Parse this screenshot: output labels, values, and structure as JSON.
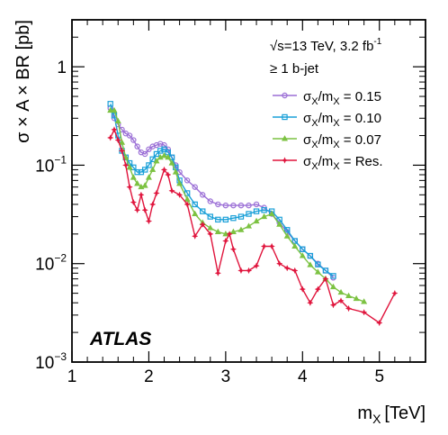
{
  "chart_data": {
    "type": "line",
    "xlabel_main": "m",
    "xlabel_sub": "X",
    "xlabel_unit": "[TeV]",
    "ylabel": "σ × A × BR [pb]",
    "xlim": [
      1,
      5.6
    ],
    "ylim": [
      0.001,
      3
    ],
    "yscale": "log",
    "xticks": [
      1,
      2,
      3,
      4,
      5
    ],
    "yticks": [
      {
        "value": 0.001,
        "base": "10",
        "exp": "−3"
      },
      {
        "value": 0.01,
        "base": "10",
        "exp": "−2"
      },
      {
        "value": 0.1,
        "base": "10",
        "exp": "−1"
      },
      {
        "value": 1,
        "base": "1",
        "exp": ""
      }
    ],
    "grid": false,
    "legend_position": "top-right",
    "annotations": {
      "energy_sqrt": "√s",
      "energy_rest": "=13 TeV, 3.2 fb",
      "energy_sup": "-1",
      "selection": "≥ 1 b-jet",
      "experiment": "ATLAS"
    },
    "series": [
      {
        "label_main": "σ",
        "label_sub": "X",
        "label_sep": "/m",
        "label_sub2": "X",
        "label_value": " = 0.15",
        "color": "#9b6fd6",
        "marker": "circle",
        "points": [
          [
            1.5,
            0.38
          ],
          [
            1.55,
            0.3
          ],
          [
            1.6,
            0.26
          ],
          [
            1.65,
            0.23
          ],
          [
            1.7,
            0.21
          ],
          [
            1.75,
            0.2
          ],
          [
            1.8,
            0.18
          ],
          [
            1.85,
            0.155
          ],
          [
            1.9,
            0.135
          ],
          [
            1.95,
            0.13
          ],
          [
            2.0,
            0.145
          ],
          [
            2.05,
            0.155
          ],
          [
            2.1,
            0.16
          ],
          [
            2.15,
            0.165
          ],
          [
            2.2,
            0.16
          ],
          [
            2.25,
            0.145
          ],
          [
            2.3,
            0.12
          ],
          [
            2.35,
            0.1
          ],
          [
            2.4,
            0.085
          ],
          [
            2.5,
            0.07
          ],
          [
            2.6,
            0.06
          ],
          [
            2.7,
            0.05
          ],
          [
            2.8,
            0.043
          ],
          [
            2.9,
            0.04
          ],
          [
            3.0,
            0.039
          ],
          [
            3.1,
            0.039
          ],
          [
            3.2,
            0.039
          ],
          [
            3.3,
            0.039
          ],
          [
            3.4,
            0.04
          ],
          [
            3.5,
            0.037
          ],
          [
            3.6,
            0.032
          ],
          [
            3.7,
            0.026
          ],
          [
            3.8,
            0.021
          ],
          [
            3.9,
            0.017
          ],
          [
            4.0,
            0.014
          ],
          [
            4.1,
            0.012
          ],
          [
            4.2,
            0.01
          ],
          [
            4.3,
            0.0085
          ],
          [
            4.4,
            0.0072
          ]
        ]
      },
      {
        "label_main": "σ",
        "label_sub": "X",
        "label_sep": "/m",
        "label_sub2": "X",
        "label_value": " = 0.10",
        "color": "#1aa0d8",
        "marker": "square",
        "points": [
          [
            1.5,
            0.42
          ],
          [
            1.55,
            0.32
          ],
          [
            1.6,
            0.2
          ],
          [
            1.65,
            0.14
          ],
          [
            1.7,
            0.12
          ],
          [
            1.75,
            0.105
          ],
          [
            1.8,
            0.095
          ],
          [
            1.85,
            0.085
          ],
          [
            1.9,
            0.085
          ],
          [
            1.95,
            0.09
          ],
          [
            2.0,
            0.1
          ],
          [
            2.05,
            0.115
          ],
          [
            2.1,
            0.13
          ],
          [
            2.15,
            0.14
          ],
          [
            2.2,
            0.145
          ],
          [
            2.25,
            0.135
          ],
          [
            2.3,
            0.12
          ],
          [
            2.35,
            0.095
          ],
          [
            2.4,
            0.07
          ],
          [
            2.5,
            0.052
          ],
          [
            2.6,
            0.04
          ],
          [
            2.7,
            0.034
          ],
          [
            2.8,
            0.03
          ],
          [
            2.9,
            0.028
          ],
          [
            3.0,
            0.028
          ],
          [
            3.1,
            0.029
          ],
          [
            3.2,
            0.03
          ],
          [
            3.3,
            0.032
          ],
          [
            3.4,
            0.034
          ],
          [
            3.5,
            0.035
          ],
          [
            3.6,
            0.034
          ],
          [
            3.7,
            0.028
          ],
          [
            3.8,
            0.022
          ],
          [
            3.9,
            0.017
          ],
          [
            4.0,
            0.014
          ],
          [
            4.1,
            0.012
          ],
          [
            4.2,
            0.0098
          ],
          [
            4.3,
            0.0085
          ],
          [
            4.4,
            0.0075
          ]
        ]
      },
      {
        "label_main": "σ",
        "label_sub": "X",
        "label_sep": "/m",
        "label_sub2": "X",
        "label_value": " = 0.07",
        "color": "#7cc242",
        "marker": "triangle",
        "points": [
          [
            1.5,
            0.36
          ],
          [
            1.55,
            0.36
          ],
          [
            1.6,
            0.28
          ],
          [
            1.65,
            0.17
          ],
          [
            1.7,
            0.12
          ],
          [
            1.75,
            0.095
          ],
          [
            1.8,
            0.075
          ],
          [
            1.85,
            0.065
          ],
          [
            1.9,
            0.06
          ],
          [
            1.95,
            0.062
          ],
          [
            2.0,
            0.075
          ],
          [
            2.05,
            0.09
          ],
          [
            2.1,
            0.11
          ],
          [
            2.15,
            0.12
          ],
          [
            2.2,
            0.125
          ],
          [
            2.25,
            0.12
          ],
          [
            2.3,
            0.105
          ],
          [
            2.35,
            0.085
          ],
          [
            2.4,
            0.065
          ],
          [
            2.5,
            0.045
          ],
          [
            2.6,
            0.032
          ],
          [
            2.7,
            0.026
          ],
          [
            2.8,
            0.023
          ],
          [
            2.9,
            0.021
          ],
          [
            3.0,
            0.02
          ],
          [
            3.1,
            0.021
          ],
          [
            3.2,
            0.022
          ],
          [
            3.3,
            0.024
          ],
          [
            3.4,
            0.027
          ],
          [
            3.5,
            0.03
          ],
          [
            3.6,
            0.032
          ],
          [
            3.7,
            0.025
          ],
          [
            3.8,
            0.019
          ],
          [
            3.9,
            0.015
          ],
          [
            4.0,
            0.012
          ],
          [
            4.1,
            0.0097
          ],
          [
            4.2,
            0.0082
          ],
          [
            4.3,
            0.007
          ],
          [
            4.4,
            0.0058
          ],
          [
            4.5,
            0.0051
          ],
          [
            4.6,
            0.0047
          ],
          [
            4.7,
            0.0044
          ],
          [
            4.8,
            0.0041
          ]
        ]
      },
      {
        "label_main": "σ",
        "label_sub": "X",
        "label_sep": "/m",
        "label_sub2": "X",
        "label_value": " = Res.",
        "color": "#e0143c",
        "marker": "star",
        "points": [
          [
            1.5,
            0.19
          ],
          [
            1.55,
            0.23
          ],
          [
            1.6,
            0.18
          ],
          [
            1.65,
            0.14
          ],
          [
            1.7,
            0.1
          ],
          [
            1.75,
            0.06
          ],
          [
            1.8,
            0.042
          ],
          [
            1.85,
            0.035
          ],
          [
            1.9,
            0.05
          ],
          [
            1.95,
            0.035
          ],
          [
            2.0,
            0.027
          ],
          [
            2.05,
            0.04
          ],
          [
            2.1,
            0.052
          ],
          [
            2.2,
            0.09
          ],
          [
            2.25,
            0.08
          ],
          [
            2.3,
            0.055
          ],
          [
            2.4,
            0.05
          ],
          [
            2.5,
            0.04
          ],
          [
            2.6,
            0.019
          ],
          [
            2.7,
            0.025
          ],
          [
            2.8,
            0.02
          ],
          [
            2.9,
            0.008
          ],
          [
            3.0,
            0.017
          ],
          [
            3.05,
            0.02
          ],
          [
            3.1,
            0.014
          ],
          [
            3.2,
            0.0085
          ],
          [
            3.3,
            0.0085
          ],
          [
            3.4,
            0.0095
          ],
          [
            3.5,
            0.015
          ],
          [
            3.6,
            0.015
          ],
          [
            3.7,
            0.01
          ],
          [
            3.8,
            0.009
          ],
          [
            3.9,
            0.0085
          ],
          [
            4.0,
            0.0055
          ],
          [
            4.1,
            0.004
          ],
          [
            4.2,
            0.0055
          ],
          [
            4.3,
            0.007
          ],
          [
            4.4,
            0.0038
          ],
          [
            4.5,
            0.0042
          ],
          [
            4.6,
            0.0035
          ],
          [
            4.8,
            0.0032
          ],
          [
            5.0,
            0.0025
          ],
          [
            5.2,
            0.005
          ]
        ]
      }
    ]
  }
}
